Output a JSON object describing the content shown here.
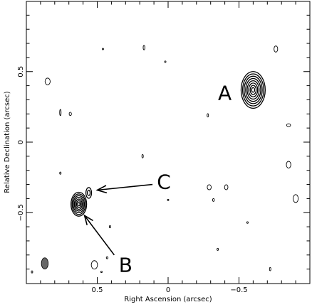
{
  "chart_data": {
    "type": "contour",
    "xlabel": "Right Ascension  (arcsec)",
    "ylabel": "Relative Declination  (arcsec)",
    "xlim": [
      1.0,
      -1.0
    ],
    "ylim": [
      -1.0,
      1.0
    ],
    "x_ticks": [
      {
        "v": 0.5,
        "label": "0.5"
      },
      {
        "v": 0,
        "label": "0"
      },
      {
        "v": -0.5,
        "label": "−0.5"
      }
    ],
    "y_ticks": [
      {
        "v": 0.5,
        "label": "0.5"
      },
      {
        "v": 0,
        "label": "0"
      },
      {
        "v": -0.5,
        "label": "−0.5"
      }
    ],
    "sources": [
      {
        "x": -0.6,
        "y": 0.37,
        "rx": 0.085,
        "ry": 0.13,
        "levels": 8,
        "label": "A"
      },
      {
        "x": 0.63,
        "y": -0.44,
        "rx": 0.055,
        "ry": 0.085,
        "levels": 7,
        "label": "B"
      },
      {
        "x": 0.56,
        "y": -0.36,
        "rx": 0.02,
        "ry": 0.038,
        "levels": 2,
        "label": "C"
      }
    ],
    "annotations": [
      {
        "text": "A",
        "x": -0.4,
        "y": 0.35
      },
      {
        "text": "B",
        "x": 0.3,
        "y": -0.87
      },
      {
        "text": "C",
        "x": 0.03,
        "y": -0.28
      }
    ],
    "arrows": [
      {
        "from": [
          0.11,
          -0.3
        ],
        "to": [
          0.5,
          -0.34
        ]
      },
      {
        "from": [
          0.38,
          -0.8
        ],
        "to": [
          0.59,
          -0.52
        ]
      }
    ],
    "noise_contours": [
      {
        "x": 0.85,
        "y": 0.43,
        "rx": 0.018,
        "ry": 0.024
      },
      {
        "x": 0.46,
        "y": 0.66,
        "rx": 0.004,
        "ry": 0.005
      },
      {
        "x": 0.17,
        "y": 0.67,
        "rx": 0.006,
        "ry": 0.016
      },
      {
        "x": 0.02,
        "y": 0.57,
        "rx": 0.004,
        "ry": 0.004
      },
      {
        "x": -0.76,
        "y": 0.66,
        "rx": 0.013,
        "ry": 0.022
      },
      {
        "x": 0.76,
        "y": 0.21,
        "rx": 0.004,
        "ry": 0.022
      },
      {
        "x": 0.69,
        "y": 0.2,
        "rx": 0.008,
        "ry": 0.012
      },
      {
        "x": -0.28,
        "y": 0.19,
        "rx": 0.004,
        "ry": 0.012
      },
      {
        "x": -0.85,
        "y": 0.12,
        "rx": 0.014,
        "ry": 0.01
      },
      {
        "x": 0.18,
        "y": -0.1,
        "rx": 0.004,
        "ry": 0.012
      },
      {
        "x": -0.85,
        "y": -0.16,
        "rx": 0.016,
        "ry": 0.024
      },
      {
        "x": 0.76,
        "y": -0.22,
        "rx": 0.005,
        "ry": 0.008
      },
      {
        "x": -0.29,
        "y": -0.32,
        "rx": 0.014,
        "ry": 0.018
      },
      {
        "x": -0.41,
        "y": -0.32,
        "rx": 0.012,
        "ry": 0.018
      },
      {
        "x": -0.32,
        "y": -0.41,
        "rx": 0.006,
        "ry": 0.01
      },
      {
        "x": 0.0,
        "y": -0.41,
        "rx": 0.003,
        "ry": 0.005
      },
      {
        "x": -0.9,
        "y": -0.4,
        "rx": 0.018,
        "ry": 0.028
      },
      {
        "x": 0.41,
        "y": -0.6,
        "rx": 0.005,
        "ry": 0.008
      },
      {
        "x": -0.56,
        "y": -0.57,
        "rx": 0.003,
        "ry": 0.006
      },
      {
        "x": -0.35,
        "y": -0.76,
        "rx": 0.005,
        "ry": 0.008
      },
      {
        "x": 0.52,
        "y": -0.87,
        "rx": 0.022,
        "ry": 0.03
      },
      {
        "x": 0.43,
        "y": -0.82,
        "rx": 0.006,
        "ry": 0.007
      },
      {
        "x": 0.47,
        "y": -0.92,
        "rx": 0.004,
        "ry": 0.004
      },
      {
        "x": -0.72,
        "y": -0.9,
        "rx": 0.005,
        "ry": 0.012
      },
      {
        "x": 0.96,
        "y": -0.92,
        "rx": 0.003,
        "ry": 0.008
      }
    ],
    "beam": {
      "x": 0.87,
      "y": -0.86,
      "rx": 0.024,
      "ry": 0.04
    }
  }
}
